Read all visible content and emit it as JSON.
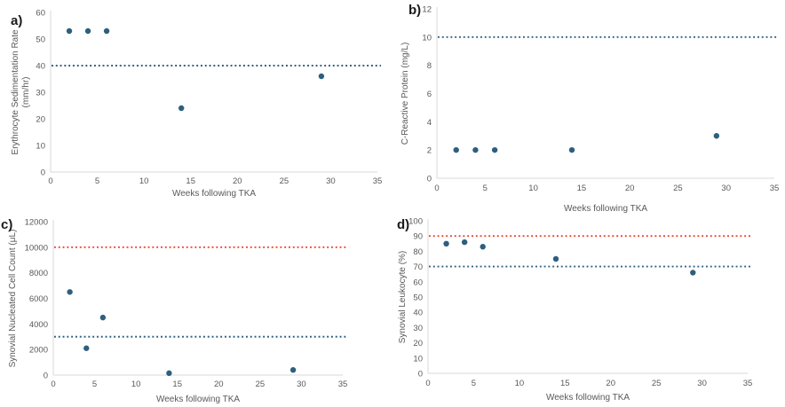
{
  "figure": {
    "description": "Four-panel scatter figure of serum and synovial fluid markers following TKA",
    "background": "#ffffff"
  },
  "palette": {
    "point_color": "#2d5f7e",
    "blue_reference_line": "#2d5f7e",
    "red_reference_line": "#e8432c",
    "axis_line_color": "#d9d9d9",
    "tick_label_color": "#595959",
    "axis_title_color": "#595959",
    "panel_letter_color": "#1a1a1a"
  },
  "chart_data": [
    {
      "id": "a",
      "panel_label": "a)",
      "type": "scatter",
      "x": [
        2,
        4,
        6,
        14,
        29
      ],
      "y": [
        53,
        53,
        53,
        24,
        36
      ],
      "xlabel": "Weeks following TKA",
      "ylabel": "Erythrocyte Sedimentation Rate (mm/hr)",
      "ylabel_lines": [
        "Erythrocyte Sedimentation Rate",
        "(mm/hr)"
      ],
      "xlim": [
        0,
        35
      ],
      "ylim": [
        0,
        60
      ],
      "xticks": [
        0,
        5,
        10,
        15,
        20,
        25,
        30,
        35
      ],
      "yticks": [
        0,
        10,
        20,
        30,
        40,
        50,
        60
      ],
      "grid": false,
      "legend": "none",
      "reference_lines": [
        {
          "value": 40,
          "color": "#2d5f7e",
          "style": "dotted"
        }
      ]
    },
    {
      "id": "b",
      "panel_label": "b)",
      "type": "scatter",
      "x": [
        2,
        4,
        6,
        14,
        29
      ],
      "y": [
        2,
        2,
        2,
        2,
        3
      ],
      "xlabel": "Weeks following TKA",
      "ylabel": "C-Reactive Protein (mg/L)",
      "ylabel_lines": [
        "C-Reactive Protein (mg/L)"
      ],
      "xlim": [
        0,
        35
      ],
      "ylim": [
        0,
        12
      ],
      "xticks": [
        0,
        5,
        10,
        15,
        20,
        25,
        30,
        35
      ],
      "yticks": [
        0,
        2,
        4,
        6,
        8,
        10,
        12
      ],
      "grid": false,
      "legend": "none",
      "reference_lines": [
        {
          "value": 10,
          "color": "#2d5f7e",
          "style": "dotted"
        }
      ]
    },
    {
      "id": "c",
      "panel_label": "c)",
      "type": "scatter",
      "x": [
        2,
        4,
        6,
        14,
        29
      ],
      "y": [
        6500,
        2100,
        4500,
        150,
        400
      ],
      "xlabel": "Weeks following TKA",
      "ylabel": "Synovial Nucleated Cell Count (μL)",
      "ylabel_lines": [
        "Synovial Nucleated Cell Count (μL)"
      ],
      "xlim": [
        0,
        35
      ],
      "ylim": [
        0,
        12000
      ],
      "xticks": [
        0,
        5,
        10,
        15,
        20,
        25,
        30,
        35
      ],
      "yticks": [
        0,
        2000,
        4000,
        6000,
        8000,
        10000,
        12000
      ],
      "grid": false,
      "legend": "none",
      "reference_lines": [
        {
          "value": 10000,
          "color": "#e8432c",
          "style": "dotted"
        },
        {
          "value": 3000,
          "color": "#2d5f7e",
          "style": "dotted"
        }
      ]
    },
    {
      "id": "d",
      "panel_label": "d)",
      "type": "scatter",
      "x": [
        2,
        4,
        6,
        14,
        29
      ],
      "y": [
        85,
        86,
        83,
        75,
        66
      ],
      "xlabel": "Weeks following TKA",
      "ylabel": "Synovial Leukocyte (%)",
      "ylabel_lines": [
        "Synovial Leukocyte (%)"
      ],
      "xlim": [
        0,
        35
      ],
      "ylim": [
        0,
        100
      ],
      "xticks": [
        0,
        5,
        10,
        15,
        20,
        25,
        30,
        35
      ],
      "yticks": [
        0,
        10,
        20,
        30,
        40,
        50,
        60,
        70,
        80,
        90,
        100
      ],
      "grid": false,
      "legend": "none",
      "reference_lines": [
        {
          "value": 90,
          "color": "#e8432c",
          "style": "dotted"
        },
        {
          "value": 70,
          "color": "#2d5f7e",
          "style": "dotted"
        }
      ]
    }
  ]
}
